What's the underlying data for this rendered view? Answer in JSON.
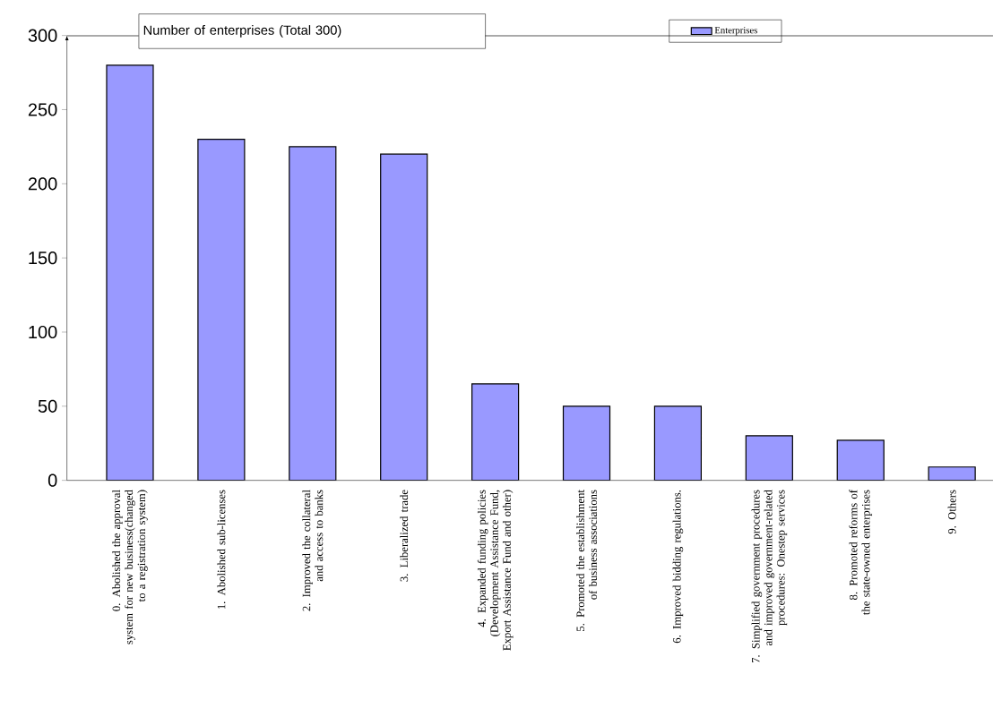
{
  "chart_data": {
    "type": "bar",
    "title": "Number of enterprises (Total 300)",
    "categories": [
      "0. Abolished the approval system for new business(changed to a registration system)",
      "1. Abolished sub-licenses",
      "2. Improved the collateral and access to banks",
      "3. Liberalized trade",
      "4. Expanded funding policies (Development Assistance Fund, Export Assistance Fund and other)",
      "5. Promoted the establishment of business associations",
      "6. Improved bidding regulations.",
      "7. Simplified government procedures and improved government-related procedures: Onestep services",
      "8. Promoted reforms of the state-owned enterprises",
      "9. Others"
    ],
    "series": [
      {
        "name": "Enterprises",
        "color": "#9999ff",
        "values": [
          280,
          230,
          225,
          220,
          65,
          50,
          50,
          30,
          27,
          9
        ]
      }
    ],
    "ylim": [
      0,
      300
    ],
    "yticks": [
      0,
      50,
      100,
      150,
      200,
      250,
      300
    ],
    "grid": false,
    "legend": "top"
  }
}
